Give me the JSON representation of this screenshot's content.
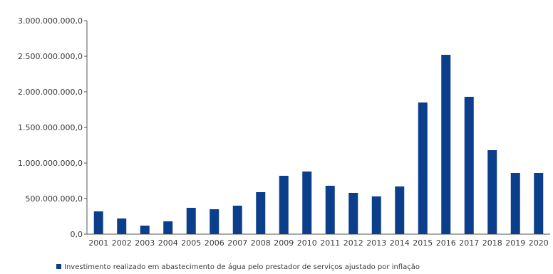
{
  "chart_data": {
    "type": "bar",
    "categories": [
      "2001",
      "2002",
      "2003",
      "2004",
      "2005",
      "2006",
      "2007",
      "2008",
      "2009",
      "2010",
      "2011",
      "2012",
      "2013",
      "2014",
      "2015",
      "2016",
      "2017",
      "2018",
      "2019",
      "2020"
    ],
    "series": [
      {
        "name": "Investimento realizado em abastecimento de água pelo prestador de serviços  ajustado por inflação",
        "values": [
          320000000,
          220000000,
          120000000,
          180000000,
          370000000,
          350000000,
          400000000,
          590000000,
          820000000,
          880000000,
          680000000,
          580000000,
          530000000,
          670000000,
          1850000000,
          2520000000,
          1930000000,
          1180000000,
          860000000,
          860000000
        ]
      }
    ],
    "y_ticks": [
      "0,0",
      "500.000.000,0",
      "1.000.000.000,0",
      "1.500.000.000,0",
      "2.000.000.000,0",
      "2.500.000.000,0",
      "3.000.000.000,0"
    ],
    "title": "",
    "xlabel": "",
    "ylabel": "",
    "ylim": [
      0,
      3000000000
    ],
    "grid": false,
    "legend_position": "bottom-left",
    "colors": {
      "bar": "#0b3f8c",
      "axis": "#555555",
      "text": "#3a3a3a"
    }
  }
}
